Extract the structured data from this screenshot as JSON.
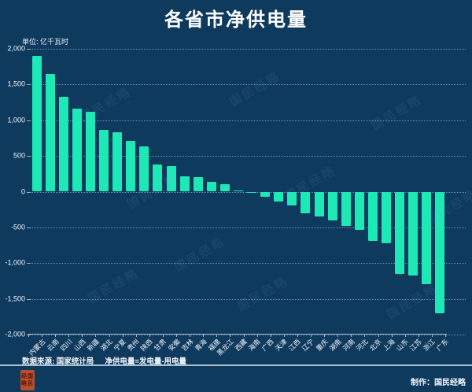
{
  "title": "各省市净供电量",
  "unit_label": "单位: 亿千瓦时",
  "watermark_text": "国民经略",
  "footer": {
    "source": "数据来源: 国家统计局",
    "formula": "净供电量=发电量-用电量",
    "credit": "制作：国民经略"
  },
  "seal": {
    "row1": "经国",
    "row2": "略民"
  },
  "colors": {
    "background": "#0e3a5e",
    "bar": "#1de9b6",
    "text": "#ffffff",
    "gridline": "rgba(190,210,228,0.55)",
    "seal": "#b5502c"
  },
  "chart_data": {
    "type": "bar",
    "title": "各省市净供电量",
    "ylabel": "亿千瓦时",
    "ylim": [
      -2000,
      2000
    ],
    "ytick_interval": 500,
    "ytick_labels": [
      "2,000",
      "1,500",
      "1,000",
      "500",
      "0",
      "-500",
      "-1,000",
      "-1,500",
      "-2,000"
    ],
    "grid": "dotted horizontal",
    "legend": "none",
    "categories": [
      "内蒙古",
      "云南",
      "四川",
      "山西",
      "新疆",
      "湖北",
      "宁夏",
      "贵州",
      "陕西",
      "甘肃",
      "安徽",
      "吉林",
      "青海",
      "福建",
      "黑龙江",
      "西藏",
      "海南",
      "广西",
      "天津",
      "江西",
      "辽宁",
      "重庆",
      "湖南",
      "河南",
      "河北",
      "北京",
      "上海",
      "山东",
      "江苏",
      "浙江",
      "广东"
    ],
    "values": [
      1900,
      1650,
      1330,
      1160,
      1120,
      870,
      830,
      710,
      630,
      380,
      360,
      210,
      205,
      140,
      110,
      15,
      -15,
      -70,
      -140,
      -195,
      -300,
      -345,
      -400,
      -480,
      -530,
      -690,
      -720,
      -1150,
      -1175,
      -1300,
      -1700
    ]
  }
}
